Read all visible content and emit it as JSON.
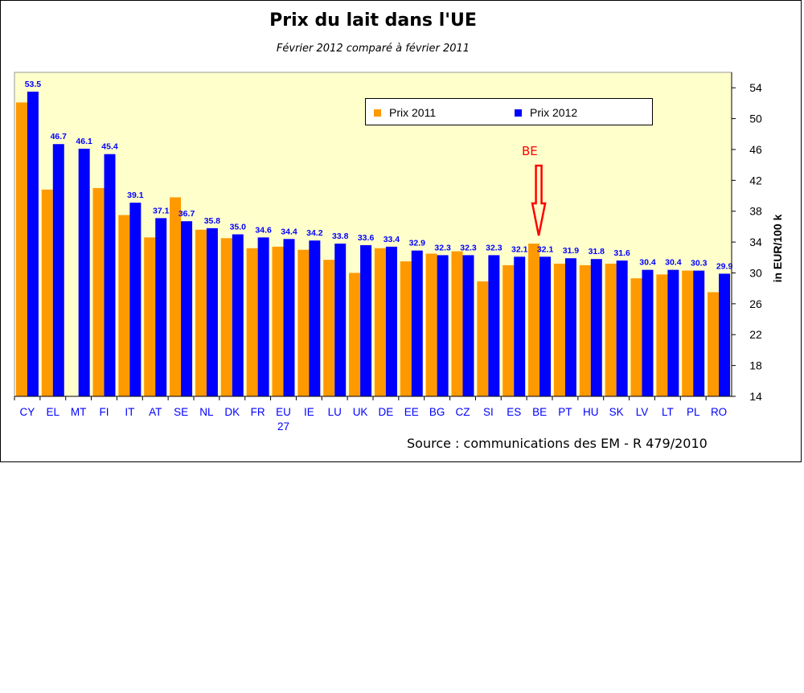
{
  "chart_data": {
    "type": "bar",
    "title": "Prix du lait dans l'UE",
    "subtitle": "Février 2012 comparé à février 2011",
    "ylabel": "in EUR/100 k",
    "source": "Source : communications des EM - R 479/2010",
    "ylim": [
      14,
      56
    ],
    "yticks": [
      "14",
      "18",
      "22",
      "26",
      "30",
      "34",
      "38",
      "42",
      "46",
      "50",
      "54"
    ],
    "y_axis_side": "right",
    "grid": false,
    "legend_position": "top-right",
    "categories": [
      "CY",
      "EL",
      "MT",
      "FI",
      "IT",
      "AT",
      "SE",
      "NL",
      "DK",
      "FR",
      "EU 27",
      "IE",
      "LU",
      "UK",
      "DE",
      "EE",
      "BG",
      "CZ",
      "SI",
      "ES",
      "BE",
      "PT",
      "HU",
      "SK",
      "LV",
      "LT",
      "PL",
      "RO"
    ],
    "series": [
      {
        "name": "Prix 2011",
        "color": "#ff9900",
        "values": [
          52.1,
          40.8,
          null,
          41.0,
          37.5,
          34.6,
          39.8,
          35.6,
          34.5,
          33.2,
          33.4,
          33.0,
          31.7,
          30.0,
          33.2,
          31.5,
          32.5,
          32.8,
          28.9,
          31.0,
          33.8,
          31.2,
          31.0,
          31.2,
          29.3,
          29.8,
          30.3,
          27.5
        ],
        "labels": []
      },
      {
        "name": "Prix 2012",
        "color": "#0000ff",
        "values": [
          53.5,
          46.7,
          46.1,
          45.4,
          39.1,
          37.1,
          36.7,
          35.8,
          35.0,
          34.6,
          34.4,
          34.2,
          33.8,
          33.6,
          33.4,
          32.9,
          32.3,
          32.3,
          32.3,
          32.1,
          32.1,
          31.9,
          31.8,
          31.6,
          30.4,
          30.4,
          30.3,
          29.9
        ],
        "labels": [
          "53.5",
          "46.7",
          "46.1",
          "45.4",
          "39.1",
          "37.1",
          "36.7",
          "35.8",
          "35.0",
          "34.6",
          "34.4",
          "34.2",
          "33.8",
          "33.6",
          "33.4",
          "32.9",
          "32.3",
          "32.3",
          "32.3",
          "32.1",
          "32.1",
          "31.9",
          "31.8",
          "31.6",
          "30.4",
          "30.4",
          "30.3",
          "29.9"
        ]
      }
    ],
    "annotation": {
      "text": "BE",
      "category": "BE",
      "color": "#ff0000"
    },
    "colors": {
      "plot_background": "#ffffcc",
      "label_text": "#0000ff",
      "category_text": "#0000ff"
    }
  }
}
